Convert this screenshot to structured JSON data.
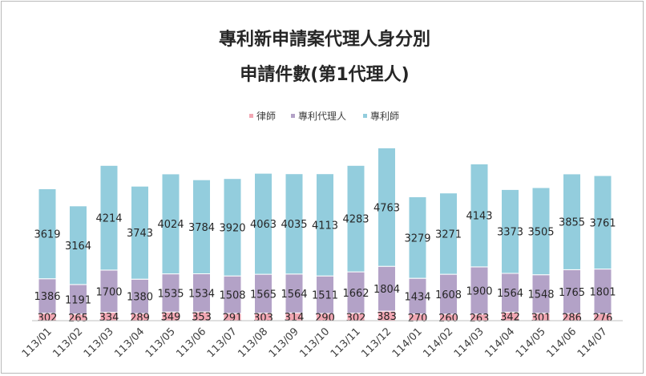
{
  "chart_data": {
    "type": "bar",
    "stacked": true,
    "title": [
      "專利新申請案代理人身分別",
      "申請件數(第1代理人)"
    ],
    "categories": [
      "113/01",
      "113/02",
      "113/03",
      "113/04",
      "113/05",
      "113/06",
      "113/07",
      "113/08",
      "113/09",
      "113/10",
      "113/11",
      "113/12",
      "114/01",
      "114/02",
      "114/03",
      "114/04",
      "114/05",
      "114/06",
      "114/07"
    ],
    "series": [
      {
        "name": "律師",
        "color": "#f2a7b3",
        "values": [
          302,
          265,
          334,
          289,
          349,
          353,
          291,
          303,
          314,
          290,
          302,
          383,
          270,
          260,
          263,
          342,
          301,
          286,
          276
        ]
      },
      {
        "name": "專利代理人",
        "color": "#b3a2c7",
        "values": [
          1386,
          1191,
          1700,
          1380,
          1535,
          1534,
          1508,
          1565,
          1564,
          1511,
          1662,
          1804,
          1434,
          1608,
          1900,
          1564,
          1548,
          1765,
          1801
        ]
      },
      {
        "name": "專利師",
        "color": "#93cddd",
        "values": [
          3619,
          3164,
          4214,
          3743,
          4024,
          3784,
          3920,
          4063,
          4035,
          4113,
          4283,
          4763,
          3279,
          3271,
          4143,
          3373,
          3505,
          3855,
          3761
        ]
      }
    ],
    "legend_position": "top",
    "grid": false,
    "ylim": [
      0,
      7000
    ]
  }
}
